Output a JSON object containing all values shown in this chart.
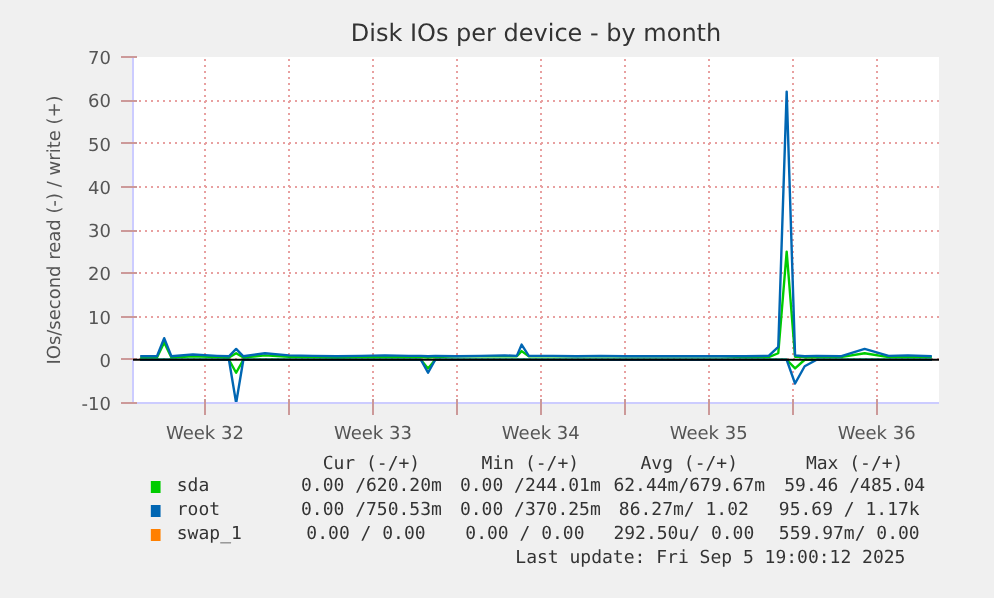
{
  "chart_data": {
    "type": "line",
    "title": "Disk IOs per device - by month",
    "ylabel": "IOs/second read (-) / write (+)",
    "x": [
      "2025-08-04T19:12",
      "2025-08-05T12:00",
      "2025-08-05T19:12",
      "2025-08-06T02:24",
      "2025-08-07T00:00",
      "2025-08-08T00:00",
      "2025-08-08T12:00",
      "2025-08-08T19:12",
      "2025-08-09T02:24",
      "2025-08-10T00:00",
      "2025-08-11T00:00",
      "2025-08-12T00:00",
      "2025-08-13T00:00",
      "2025-08-14T00:00",
      "2025-08-15T00:00",
      "2025-08-16T00:00",
      "2025-08-16T12:00",
      "2025-08-16T19:12",
      "2025-08-17T02:24",
      "2025-08-18T00:00",
      "2025-08-19T00:00",
      "2025-08-20T00:00",
      "2025-08-20T12:00",
      "2025-08-20T16:48",
      "2025-08-21T00:00",
      "2025-08-22T00:00",
      "2025-08-23T00:00",
      "2025-08-24T00:00",
      "2025-08-25T00:00",
      "2025-08-26T00:00",
      "2025-08-27T00:00",
      "2025-08-28T00:00",
      "2025-08-29T00:00",
      "2025-08-30T00:00",
      "2025-08-31T00:00",
      "2025-08-31T09:36",
      "2025-08-31T18:00",
      "2025-09-01T02:24",
      "2025-09-01T12:00",
      "2025-09-02T00:00",
      "2025-09-03T00:00",
      "2025-09-04T00:00",
      "2025-09-05T00:00",
      "2025-09-05T19:12",
      "2025-09-06T19:12"
    ],
    "series": [
      {
        "name": "sda",
        "color": "#00cc00",
        "values": [
          0.5,
          0.5,
          4,
          0.5,
          0.8,
          0.6,
          0.5,
          1.5,
          0.5,
          1.0,
          0.7,
          0.6,
          0.5,
          0.6,
          0.7,
          0.6,
          0.6,
          0.5,
          0.6,
          0.8,
          0.8,
          0.8,
          0.8,
          2.0,
          0.8,
          0.8,
          0.8,
          0.8,
          0.8,
          0.8,
          0.8,
          0.8,
          0.8,
          0.6,
          0.6,
          1.5,
          25,
          0.7,
          0.6,
          0.6,
          0.6,
          1.5,
          0.6,
          0.7,
          0.6
        ]
      },
      {
        "color": "#00cc00",
        "values": [
          0,
          0,
          0,
          0,
          0,
          0,
          0,
          -3,
          0,
          0,
          0,
          0,
          0,
          0,
          0,
          0,
          0,
          -2,
          0,
          0,
          0,
          0,
          0,
          0,
          0,
          0,
          0,
          0,
          0,
          0,
          0,
          0,
          0,
          0,
          0,
          0,
          0,
          -2,
          0,
          0,
          0,
          0,
          0,
          0,
          0
        ]
      },
      {
        "name": "root",
        "color": "#0066b3",
        "values": [
          0.8,
          0.8,
          5,
          0.8,
          1.2,
          0.9,
          0.8,
          2.5,
          0.8,
          1.5,
          1.0,
          0.9,
          0.8,
          0.9,
          1.0,
          0.9,
          0.9,
          0.8,
          0.9,
          0.8,
          0.9,
          1.0,
          0.9,
          3.5,
          0.9,
          0.9,
          0.8,
          0.9,
          0.8,
          0.8,
          0.8,
          0.8,
          0.8,
          0.8,
          0.9,
          3.0,
          62,
          1.0,
          0.8,
          0.9,
          0.8,
          2.5,
          0.9,
          1.0,
          0.8
        ]
      },
      {
        "color": "#0066b3",
        "values": [
          0,
          0,
          0,
          0,
          0,
          0,
          0,
          -10,
          0,
          0,
          0,
          0,
          0,
          0,
          0,
          0,
          0,
          -3,
          0,
          0,
          0,
          0,
          0,
          0,
          0,
          0,
          0,
          0,
          0,
          0,
          0,
          0,
          0,
          0,
          0,
          0,
          0,
          -5.5,
          -1.5,
          0,
          0,
          0,
          0,
          0,
          0
        ]
      },
      {
        "name": "swap_1",
        "color": "#ff8000",
        "values": [
          null,
          null,
          null,
          null,
          null,
          null,
          null,
          null,
          null,
          null,
          null,
          null,
          null,
          null,
          null,
          null,
          null,
          null,
          null,
          null,
          null,
          null,
          null,
          null,
          null,
          null,
          null,
          null,
          null,
          null,
          null,
          null,
          null,
          null,
          null,
          null,
          null,
          null,
          null,
          null,
          null,
          null,
          null,
          null,
          null
        ]
      }
    ],
    "xlim": [
      "2025-08-04T12:00",
      "2025-09-07T02:24"
    ],
    "xticks": [
      {
        "value": "2025-08-07T12:00",
        "label": "Week 32"
      },
      {
        "value": "2025-08-11T00:00",
        "label": null
      },
      {
        "value": "2025-08-14T12:00",
        "label": "Week 33"
      },
      {
        "value": "2025-08-18T00:00",
        "label": null
      },
      {
        "value": "2025-08-21T12:00",
        "label": "Week 34"
      },
      {
        "value": "2025-08-25T00:00",
        "label": null
      },
      {
        "value": "2025-08-28T12:00",
        "label": "Week 35"
      },
      {
        "value": "2025-09-01T00:00",
        "label": null
      },
      {
        "value": "2025-09-04T12:00",
        "label": "Week 36"
      }
    ],
    "ylim": [
      -10,
      70
    ],
    "yticks": [
      -10,
      0,
      10,
      20,
      30,
      40,
      50,
      60,
      70
    ],
    "grid": true,
    "legend": "bottom",
    "ref_lines": [
      {
        "axis": "y",
        "value": 0,
        "color": "#000000"
      }
    ],
    "annotations": [
      "Cur (-/+)",
      "Min (-/+)",
      "Avg (-/+)",
      "Max (-/+)",
      "0.00 /620.20m",
      "0.00 /244.01m",
      "62.44m/679.67m",
      "59.46 /485.04",
      "0.00 /750.53m",
      "0.00 /370.25m",
      "86.27m/  1.02",
      "95.69 /  1.17k",
      "0.00 /  0.00",
      "0.00 /  0.00",
      "292.50u/  0.00",
      "559.97m/  0.00",
      "Last update: Fri Sep  5 19:00:12 2025"
    ]
  }
}
